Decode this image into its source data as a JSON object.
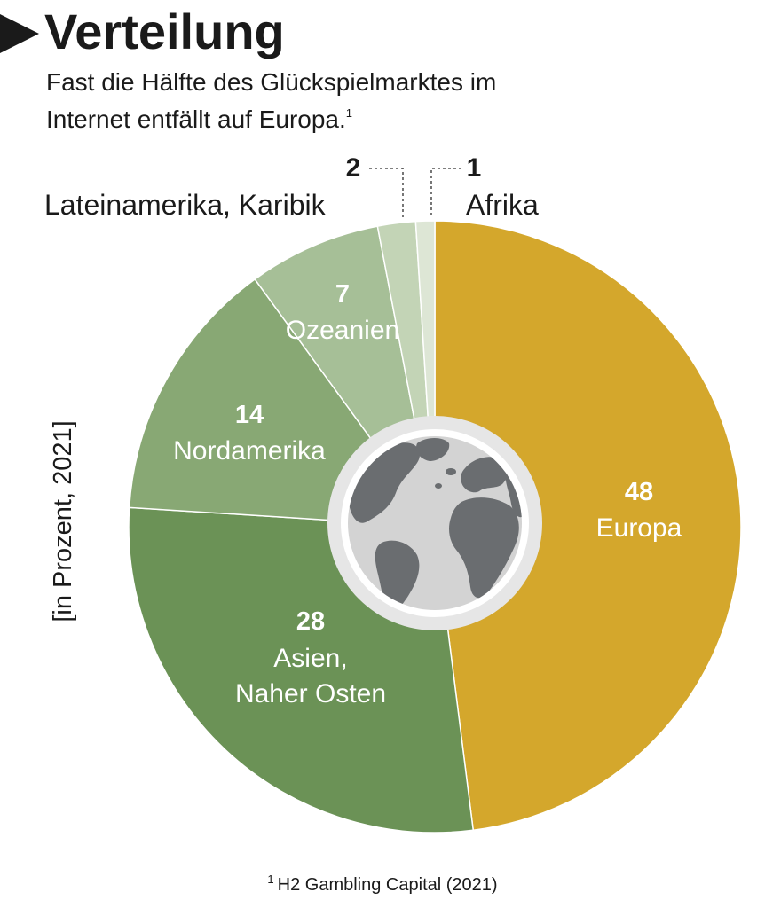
{
  "header": {
    "title": "Verteilung",
    "subtitle_line1": "Fast die Hälfte des Glückspielmarktes im",
    "subtitle_line2": "Internet entfällt auf Europa.",
    "subtitle_sup": "1"
  },
  "unit_note": "[in Prozent, 2021]",
  "footnote": {
    "sup": "1",
    "text": "H2 Gambling Capital (2021)"
  },
  "colors": {
    "europa": "#d4a72c",
    "asien": "#6b9256",
    "nordamerika": "#88a874",
    "ozeanien": "#a6bf97",
    "lateinamerika": "#c3d4b6",
    "afrika": "#dde6d5",
    "globe_ring": "#e6e6e6",
    "globe_land": "#6a6d70",
    "globe_sea": "#d3d3d3"
  },
  "chart_data": {
    "type": "pie",
    "title": "Verteilung",
    "unit": "[in Prozent, 2021]",
    "slices": [
      {
        "label": "Europa",
        "value": 48,
        "value_text": "48"
      },
      {
        "label": "Asien, Naher Osten",
        "value": 28,
        "value_text": "28"
      },
      {
        "label": "Nordamerika",
        "value": 14,
        "value_text": "14"
      },
      {
        "label": "Ozeanien",
        "value": 7,
        "value_text": "7"
      },
      {
        "label": "Lateinamerika, Karibik",
        "value": 2,
        "value_text": "2"
      },
      {
        "label": "Afrika",
        "value": 1,
        "value_text": "1"
      }
    ]
  }
}
